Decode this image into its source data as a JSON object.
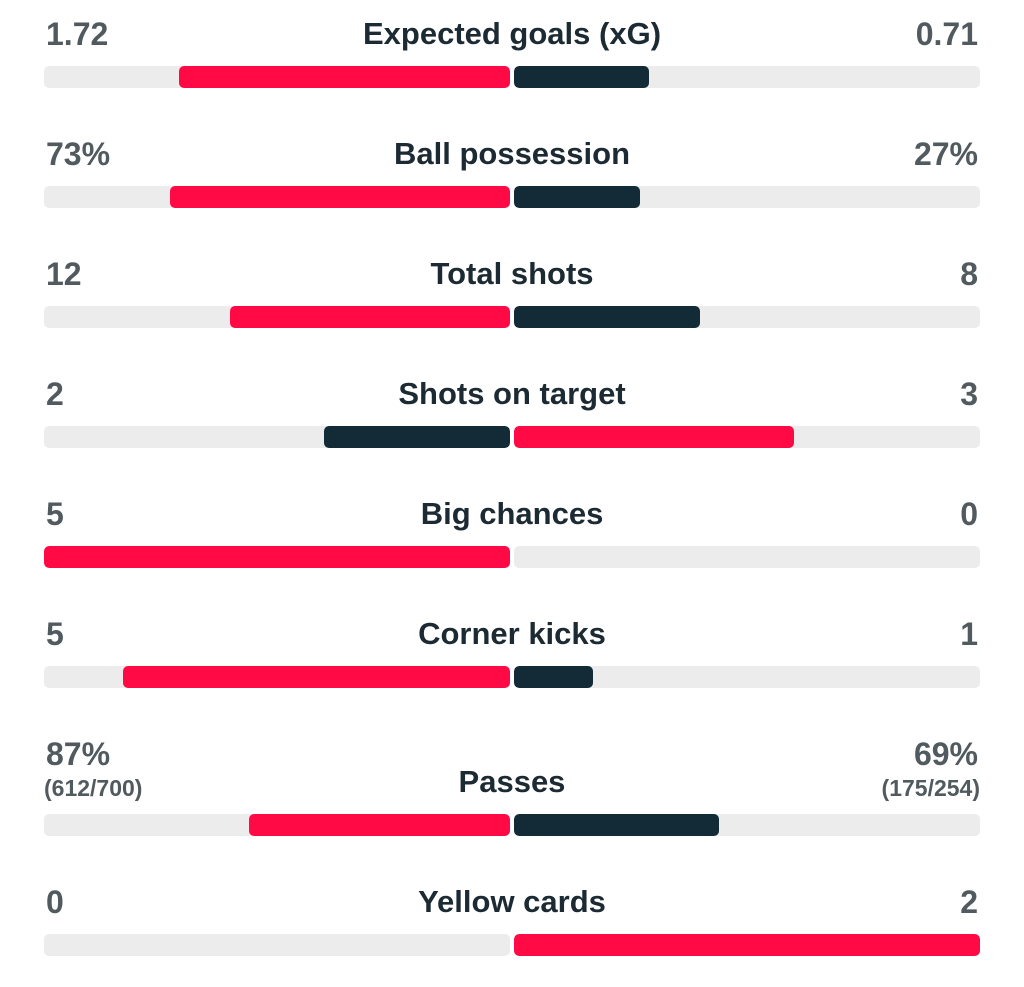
{
  "colors": {
    "leader": "#ff0a45",
    "trailer": "#122b36",
    "track": "#ececec"
  },
  "stats": [
    {
      "name": "Expected goals (xG)",
      "home": "1.72",
      "away": "0.71",
      "home_fill": 0.71,
      "away_fill": 0.29,
      "home_leads": true
    },
    {
      "name": "Ball possession",
      "home": "73%",
      "away": "27%",
      "home_fill": 0.73,
      "away_fill": 0.27,
      "home_leads": true
    },
    {
      "name": "Total shots",
      "home": "12",
      "away": "8",
      "home_fill": 0.6,
      "away_fill": 0.4,
      "home_leads": true
    },
    {
      "name": "Shots on target",
      "home": "2",
      "away": "3",
      "home_fill": 0.4,
      "away_fill": 0.6,
      "home_leads": false
    },
    {
      "name": "Big chances",
      "home": "5",
      "away": "0",
      "home_fill": 1.0,
      "away_fill": 0.0,
      "home_leads": true
    },
    {
      "name": "Corner kicks",
      "home": "5",
      "away": "1",
      "home_fill": 0.83,
      "away_fill": 0.17,
      "home_leads": true
    },
    {
      "name": "Passes",
      "home": "87%",
      "away": "69%",
      "home_sub": "(612/700)",
      "away_sub": "(175/254)",
      "home_fill": 0.56,
      "away_fill": 0.44,
      "home_leads": true
    },
    {
      "name": "Yellow cards",
      "home": "0",
      "away": "2",
      "home_fill": 0.0,
      "away_fill": 1.0,
      "home_leads": false
    }
  ]
}
